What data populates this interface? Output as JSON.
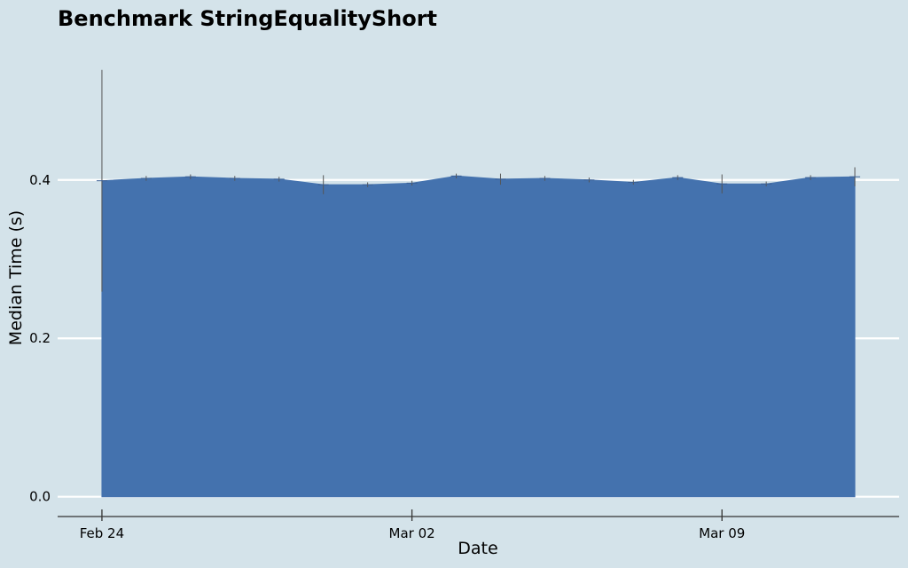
{
  "chart_data": {
    "type": "area",
    "title": "Benchmark StringEqualityShort",
    "xlabel": "Date",
    "ylabel": "Median Time (s)",
    "x_ticks": [
      "Feb 24",
      "Mar 02",
      "Mar 09"
    ],
    "y_ticks": [
      "0.0",
      "0.2",
      "0.4"
    ],
    "ylim": [
      -0.025,
      0.56
    ],
    "xlim": [
      "2020-02-23",
      "2020-03-13"
    ],
    "grid": true,
    "grid_axis": "y",
    "legend": "none",
    "fill_color": "#4472ae",
    "series": [
      {
        "x": [
          "2020-02-24",
          "2020-02-25",
          "2020-02-26",
          "2020-02-27",
          "2020-02-28",
          "2020-02-29",
          "2020-03-01",
          "2020-03-02",
          "2020-03-03",
          "2020-03-04",
          "2020-03-05",
          "2020-03-06",
          "2020-03-07",
          "2020-03-08",
          "2020-03-09",
          "2020-03-10",
          "2020-03-11",
          "2020-03-12"
        ],
        "values": [
          0.399,
          0.402,
          0.404,
          0.402,
          0.401,
          0.394,
          0.394,
          0.396,
          0.405,
          0.401,
          0.402,
          0.4,
          0.397,
          0.403,
          0.395,
          0.395,
          0.403,
          0.404
        ],
        "error": [
          0.14,
          0.003,
          0.003,
          0.003,
          0.003,
          0.012,
          0.003,
          0.003,
          0.003,
          0.007,
          0.003,
          0.003,
          0.003,
          0.003,
          0.012,
          0.003,
          0.003,
          0.012
        ]
      }
    ]
  }
}
